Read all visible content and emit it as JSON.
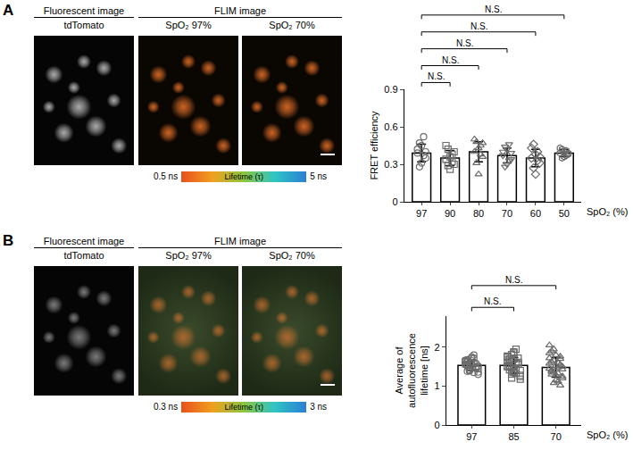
{
  "panels": [
    {
      "label": "A",
      "fluorescent_header": "Fluorescent image",
      "fluorescent_caption": "tdTomato",
      "flim_header": "FLIM image",
      "flim_captions": [
        "SpO₂ 97%",
        "SpO₂ 70%"
      ],
      "lifetime_scale": {
        "min_label": "0.5 ns",
        "title": "Lifetime (τ)",
        "max_label": "5 ns"
      }
    },
    {
      "label": "B",
      "fluorescent_header": "Fluorescent image",
      "fluorescent_caption": "tdTomato",
      "flim_header": "FLIM image",
      "flim_captions": [
        "SpO₂ 97%",
        "SpO₂ 70%"
      ],
      "lifetime_scale": {
        "min_label": "0.3 ns",
        "title": "Lifetime (τ)",
        "max_label": "3 ns"
      }
    }
  ],
  "chart_data": [
    {
      "type": "bar",
      "color": "#ffffff",
      "categories": [
        "97",
        "90",
        "80",
        "70",
        "60",
        "50"
      ],
      "values": [
        0.39,
        0.35,
        0.4,
        0.37,
        0.35,
        0.39
      ],
      "errors": [
        0.07,
        0.06,
        0.08,
        0.06,
        0.07,
        0.03
      ],
      "points": [
        {
          "category": "97",
          "marker": "circle-open",
          "values": [
            0.39,
            0.47,
            0.31,
            0.52,
            0.35,
            0.42,
            0.28,
            0.45,
            0.37,
            0.4
          ]
        },
        {
          "category": "90",
          "marker": "square-open",
          "values": [
            0.34,
            0.42,
            0.26,
            0.38,
            0.3,
            0.45,
            0.29,
            0.36,
            0.32,
            0.4
          ]
        },
        {
          "category": "80",
          "marker": "triangle-up-open",
          "values": [
            0.4,
            0.48,
            0.22,
            0.45,
            0.36,
            0.5,
            0.31,
            0.43,
            0.38,
            0.47
          ]
        },
        {
          "category": "70",
          "marker": "triangle-down-open",
          "values": [
            0.37,
            0.44,
            0.3,
            0.46,
            0.34,
            0.4,
            0.28,
            0.42,
            0.33,
            0.39
          ]
        },
        {
          "category": "60",
          "marker": "diamond-open",
          "values": [
            0.35,
            0.46,
            0.22,
            0.4,
            0.31,
            0.43,
            0.27,
            0.38,
            0.33,
            0.36
          ]
        },
        {
          "category": "50",
          "marker": "hexagon-open",
          "values": [
            0.39,
            0.42,
            0.36,
            0.41,
            0.38,
            0.43,
            0.35,
            0.4,
            0.37,
            0.39
          ]
        }
      ],
      "ylim": [
        0,
        0.9
      ],
      "yticks": [
        0,
        0.3,
        0.6,
        0.9
      ],
      "y_label": [
        "FRET efficiency"
      ],
      "x_label": "SpO₂ (%)",
      "comparisons": [
        {
          "from": "97",
          "to": "90",
          "label": "N.S."
        },
        {
          "from": "97",
          "to": "80",
          "label": "N.S."
        },
        {
          "from": "97",
          "to": "70",
          "label": "N.S."
        },
        {
          "from": "97",
          "to": "60",
          "label": "N.S."
        },
        {
          "from": "97",
          "to": "50",
          "label": "N.S."
        }
      ]
    },
    {
      "type": "bar",
      "color": "#ffffff",
      "categories": [
        "97",
        "85",
        "70"
      ],
      "values": [
        1.53,
        1.53,
        1.48
      ],
      "errors": [
        0.13,
        0.2,
        0.25
      ],
      "points": [
        {
          "category": "97",
          "marker": "circle-open",
          "values": [
            1.55,
            1.62,
            1.48,
            1.71,
            1.35,
            1.58,
            1.44,
            1.66,
            1.52,
            1.39,
            1.75,
            1.61,
            1.47,
            1.3,
            1.57,
            1.68,
            1.42,
            1.53,
            1.8,
            1.49,
            1.36,
            1.63,
            1.55,
            1.41,
            1.59,
            1.72,
            1.45,
            1.51,
            1.65,
            1.38
          ]
        },
        {
          "category": "85",
          "marker": "square-open",
          "values": [
            1.52,
            1.7,
            1.31,
            1.88,
            1.44,
            1.6,
            1.25,
            1.77,
            1.49,
            1.63,
            1.38,
            1.95,
            1.56,
            1.18,
            1.67,
            1.42,
            1.81,
            1.35,
            1.58,
            1.72,
            1.28,
            1.5,
            1.64,
            1.46,
            1.85,
            1.33,
            1.61,
            1.4,
            1.74,
            1.53,
            1.21,
            1.69
          ]
        },
        {
          "category": "70",
          "marker": "triangle-up-open",
          "values": [
            1.45,
            1.62,
            1.08,
            1.8,
            1.33,
            1.55,
            1.2,
            1.72,
            1.41,
            1.95,
            1.28,
            1.6,
            1.02,
            1.5,
            1.85,
            1.37,
            1.66,
            1.15,
            1.48,
            1.76,
            1.25,
            1.58,
            1.9,
            1.35,
            1.52,
            1.12,
            1.7,
            1.43,
            2.05,
            1.3
          ]
        }
      ],
      "ylim": [
        0,
        2.8
      ],
      "yticks": [
        0,
        1,
        2
      ],
      "y_label": [
        "Average of",
        "autofluorescence",
        "lifetime [ns]"
      ],
      "x_label": "SpO₂ (%)",
      "comparisons": [
        {
          "from": "97",
          "to": "85",
          "label": "N.S."
        },
        {
          "from": "97",
          "to": "70",
          "label": "N.S."
        }
      ]
    }
  ]
}
